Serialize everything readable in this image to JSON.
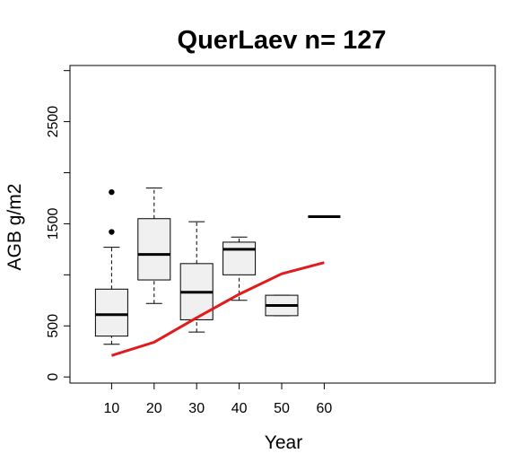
{
  "chart_data": {
    "type": "boxplot",
    "title": "QuerLaev n= 127",
    "xlabel": "Year",
    "ylabel": "AGB g/m2",
    "ylim": [
      -60,
      3050
    ],
    "xlim": [
      0,
      100
    ],
    "y_ticks": [
      0,
      500,
      1500,
      2500
    ],
    "x_ticks": [
      10,
      20,
      30,
      40,
      50,
      60
    ],
    "grid": false,
    "legend": "none",
    "boxes": [
      {
        "x": 10,
        "whisker_low": 320,
        "q1": 400,
        "median": 610,
        "q3": 860,
        "whisker_high": 1270,
        "outliers": [
          1420,
          1810
        ]
      },
      {
        "x": 20,
        "whisker_low": 720,
        "q1": 950,
        "median": 1200,
        "q3": 1550,
        "whisker_high": 1850,
        "outliers": []
      },
      {
        "x": 30,
        "whisker_low": 440,
        "q1": 560,
        "median": 830,
        "q3": 1110,
        "whisker_high": 1520,
        "outliers": []
      },
      {
        "x": 40,
        "whisker_low": 750,
        "q1": 1000,
        "median": 1250,
        "q3": 1320,
        "whisker_high": 1370,
        "outliers": []
      },
      {
        "x": 50,
        "whisker_low": 600,
        "q1": 600,
        "median": 700,
        "q3": 800,
        "whisker_high": 800,
        "outliers": []
      },
      {
        "x": 60,
        "whisker_low": 1570,
        "q1": 1570,
        "median": 1570,
        "q3": 1570,
        "whisker_high": 1570,
        "outliers": []
      }
    ],
    "line": {
      "color": "#e31a1c",
      "x": [
        10,
        20,
        30,
        40,
        50,
        60
      ],
      "y": [
        210,
        340,
        580,
        810,
        1010,
        1120
      ]
    },
    "box_fill": "#f0f0f0"
  }
}
